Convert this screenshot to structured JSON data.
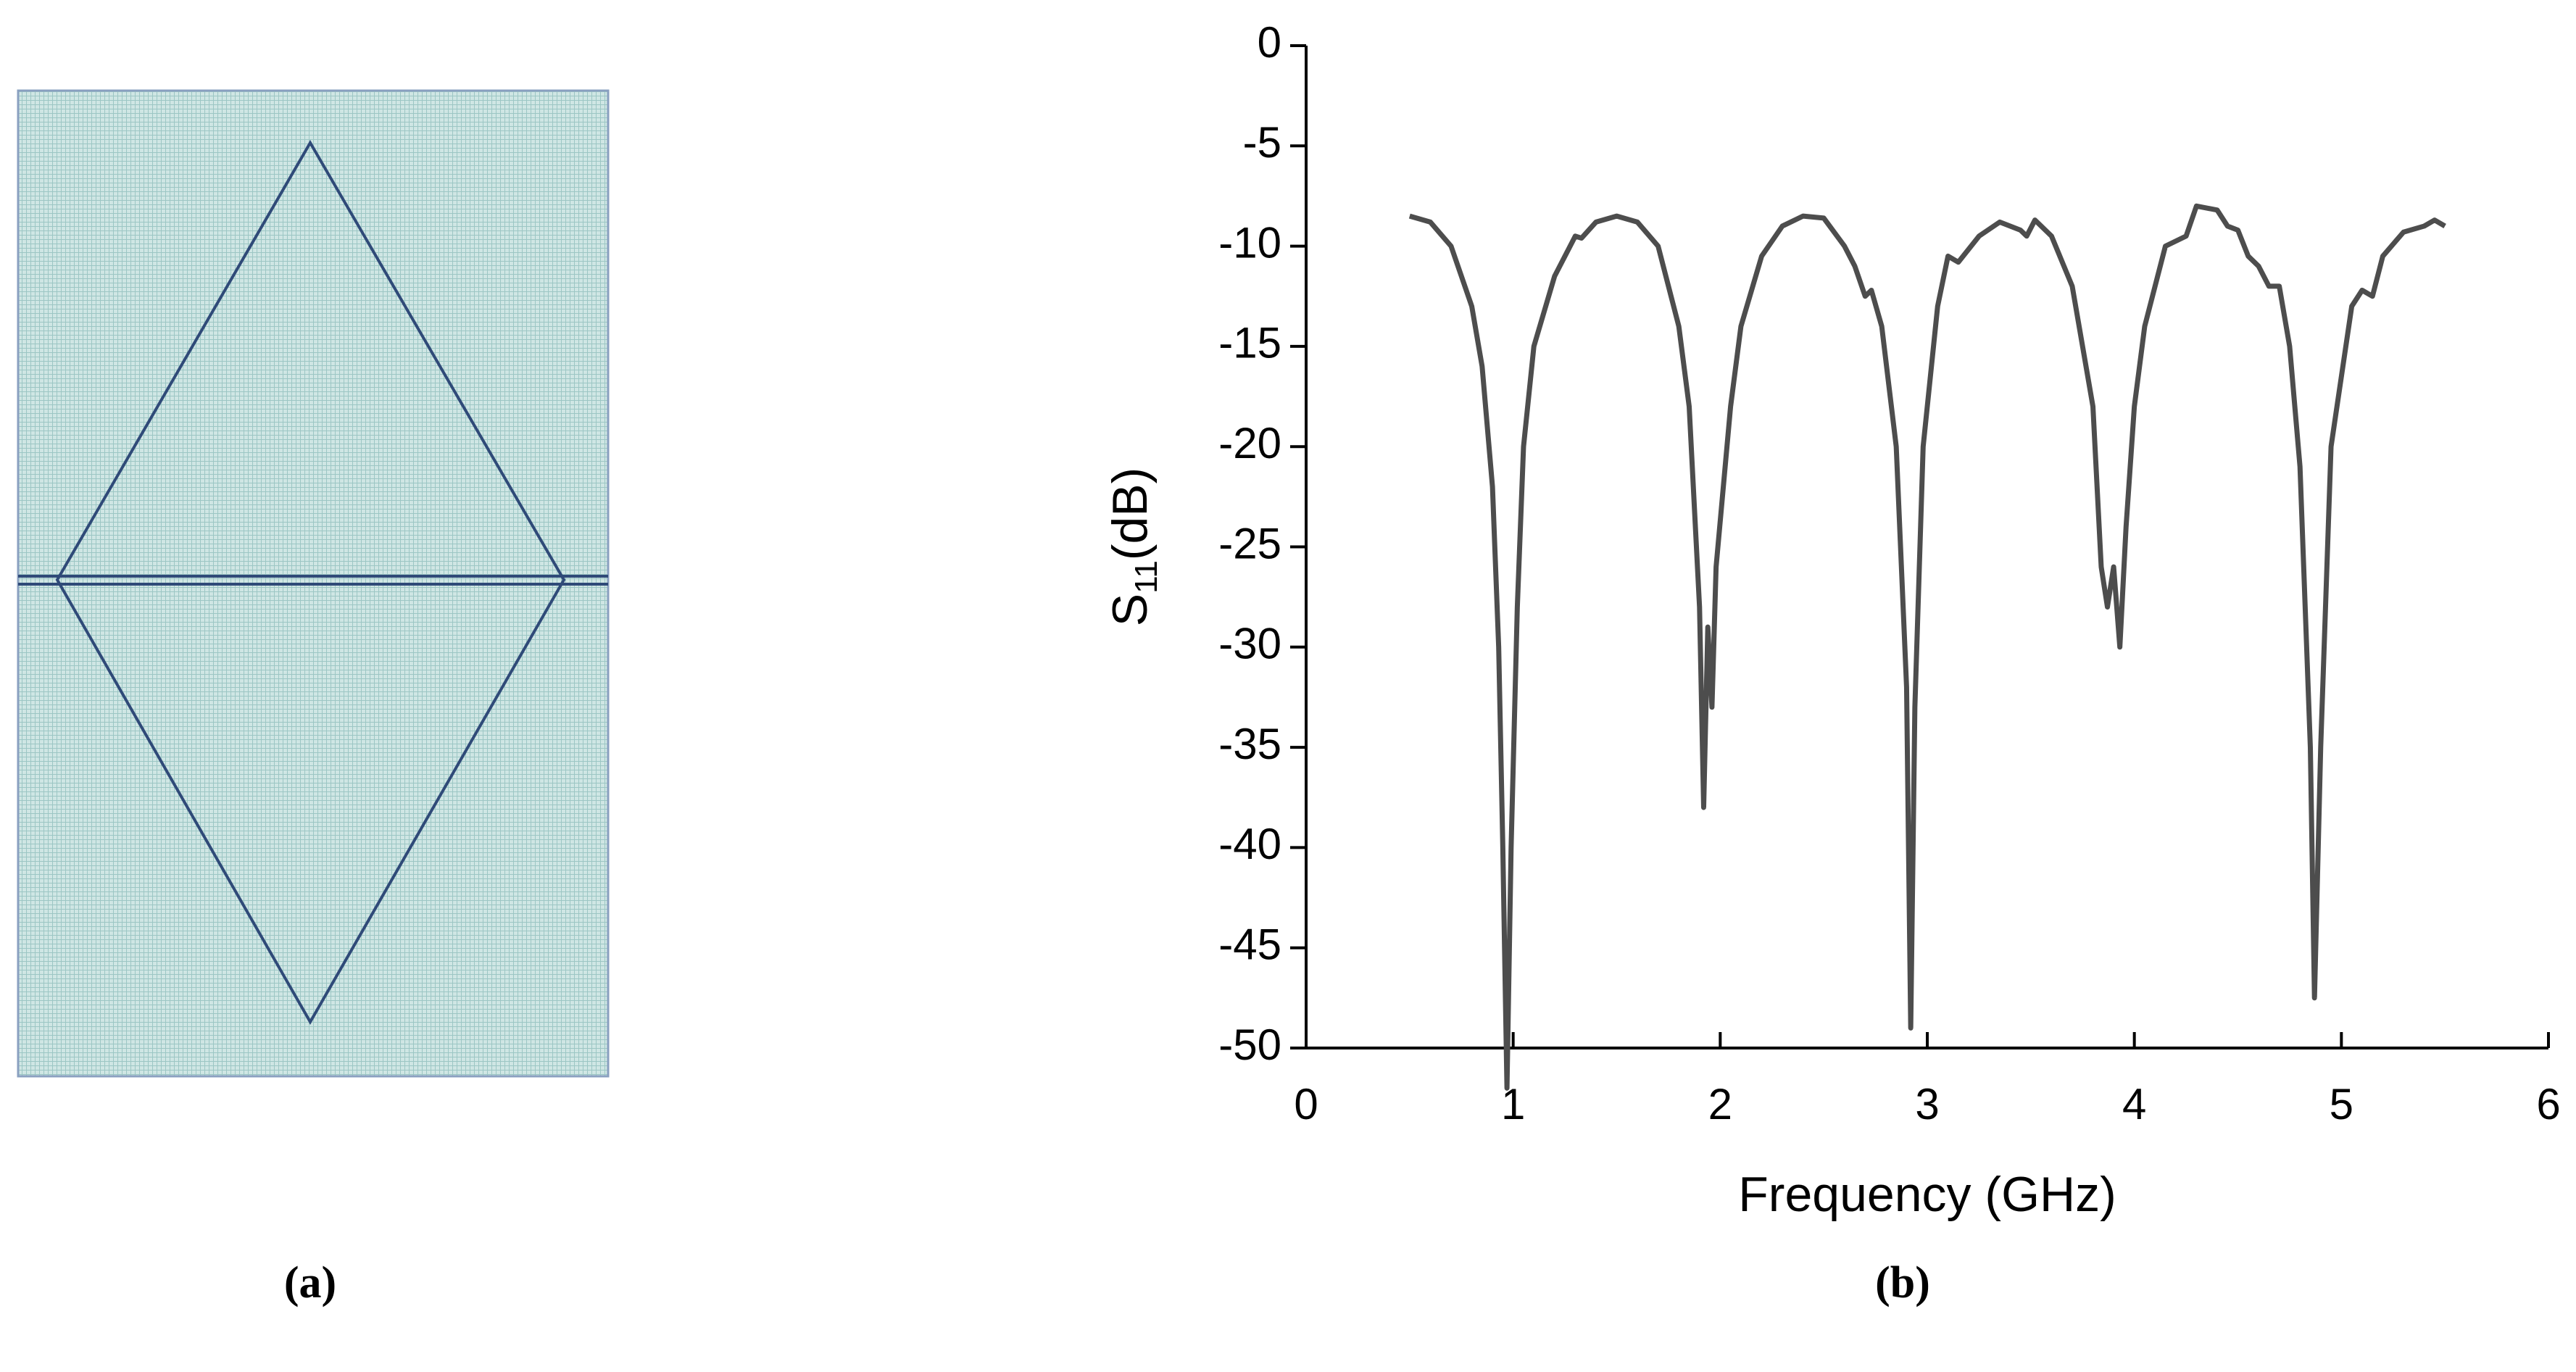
{
  "panel_labels": [
    "(a)",
    "(b)"
  ],
  "chart_data": {
    "type": "line",
    "x_label": "Frequency (GHz)",
    "y_label": [
      "S",
      "11",
      "(dB)"
    ],
    "xlim": [
      0,
      6
    ],
    "xticks": [
      0,
      1,
      2,
      3,
      4,
      5,
      6
    ],
    "ylim": [
      -50,
      0
    ],
    "yticks": [
      0,
      -5,
      -10,
      -15,
      -20,
      -25,
      -30,
      -35,
      -40,
      -45,
      -50
    ],
    "x": [
      0.5,
      0.6,
      0.7,
      0.8,
      0.85,
      0.9,
      0.93,
      0.95,
      0.97,
      0.99,
      1.02,
      1.05,
      1.1,
      1.2,
      1.3,
      1.33,
      1.4,
      1.5,
      1.6,
      1.7,
      1.8,
      1.85,
      1.9,
      1.92,
      1.94,
      1.96,
      1.98,
      2.05,
      2.1,
      2.2,
      2.3,
      2.4,
      2.5,
      2.6,
      2.65,
      2.7,
      2.73,
      2.78,
      2.85,
      2.9,
      2.92,
      2.94,
      2.98,
      3.05,
      3.1,
      3.15,
      3.25,
      3.35,
      3.45,
      3.48,
      3.52,
      3.6,
      3.7,
      3.8,
      3.84,
      3.87,
      3.9,
      3.93,
      3.96,
      4.0,
      4.05,
      4.15,
      4.25,
      4.3,
      4.4,
      4.45,
      4.5,
      4.55,
      4.6,
      4.65,
      4.7,
      4.75,
      4.8,
      4.85,
      4.87,
      4.9,
      4.95,
      5.05,
      5.1,
      5.15,
      5.2,
      5.3,
      5.4,
      5.45,
      5.5
    ],
    "series": [
      {
        "name": "S11",
        "color": "#4d4d4d",
        "values": [
          -8.5,
          -8.8,
          -10,
          -13,
          -16,
          -22,
          -30,
          -40,
          -52,
          -40,
          -28,
          -20,
          -15,
          -11.5,
          -9.5,
          -9.6,
          -8.8,
          -8.5,
          -8.8,
          -10,
          -14,
          -18,
          -28,
          -38,
          -29,
          -33,
          -26,
          -18,
          -14,
          -10.5,
          -9,
          -8.5,
          -8.6,
          -10,
          -11,
          -12.5,
          -12.2,
          -14,
          -20,
          -32,
          -49,
          -33,
          -20,
          -13,
          -10.5,
          -10.8,
          -9.5,
          -8.8,
          -9.2,
          -9.5,
          -8.7,
          -9.5,
          -12,
          -18,
          -26,
          -28,
          -26,
          -30,
          -24,
          -18,
          -14,
          -10,
          -9.5,
          -8,
          -8.2,
          -9,
          -9.2,
          -10.5,
          -11,
          -12,
          -12,
          -15,
          -21,
          -35,
          -47.5,
          -35,
          -20,
          -13,
          -12.2,
          -12.5,
          -10.5,
          -9.3,
          -9,
          -8.7,
          -9
        ]
      }
    ]
  }
}
